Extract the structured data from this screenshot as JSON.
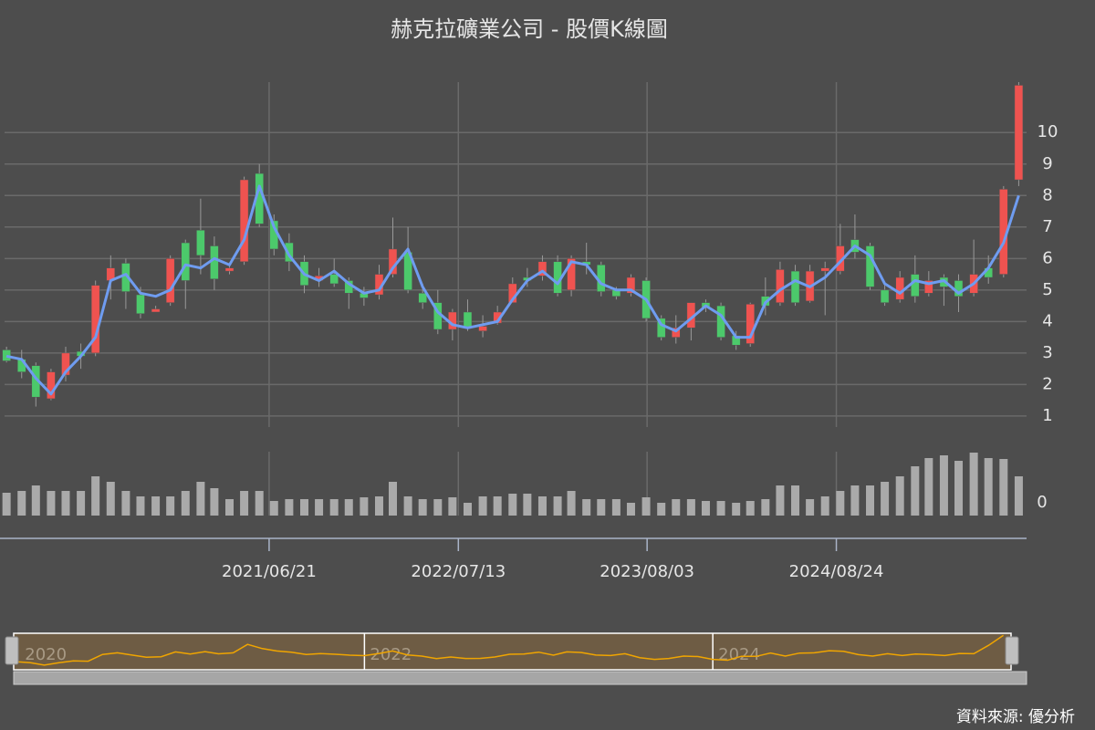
{
  "chart_data": {
    "type": "candlestick",
    "title": "赫克拉礦業公司 - 股價K線圖",
    "source": "資料來源: 優分析",
    "x": [
      "2020/01/01",
      "2020/02/01",
      "2020/03/01",
      "2020/04/01",
      "2020/05/01",
      "2020/06/01",
      "2020/07/01",
      "2020/08/01",
      "2020/09/01",
      "2020/10/01",
      "2020/11/01",
      "2020/12/01",
      "2021/01/01",
      "2021/02/01",
      "2021/03/01",
      "2021/04/01",
      "2021/05/01",
      "2021/06/01",
      "2021/07/01",
      "2021/08/01",
      "2021/09/01",
      "2021/10/01",
      "2021/11/01",
      "2021/12/01",
      "2022/01/01",
      "2022/02/01",
      "2022/03/01",
      "2022/04/01",
      "2022/05/01",
      "2022/06/01",
      "2022/07/01",
      "2022/08/01",
      "2022/09/01",
      "2022/10/01",
      "2022/11/01",
      "2022/12/01",
      "2023/01/01",
      "2023/02/01",
      "2023/03/01",
      "2023/04/01",
      "2023/05/01",
      "2023/06/01",
      "2023/07/01",
      "2023/08/01",
      "2023/09/01",
      "2023/10/01",
      "2023/11/01",
      "2023/12/01",
      "2024/01/01",
      "2024/02/01",
      "2024/03/01",
      "2024/04/01",
      "2024/05/01",
      "2024/06/01",
      "2024/07/01",
      "2024/08/01",
      "2024/09/01",
      "2024/10/01",
      "2024/11/01",
      "2024/12/01",
      "2025/01/01",
      "2025/02/01",
      "2025/03/01",
      "2025/04/01",
      "2025/05/01",
      "2025/06/01",
      "2025/07/01",
      "2025/08/01",
      "2025/09/01"
    ],
    "open": [
      3.1,
      2.8,
      2.6,
      1.55,
      2.3,
      3.05,
      3.0,
      5.3,
      5.85,
      4.85,
      4.3,
      4.6,
      6.5,
      6.9,
      6.4,
      5.6,
      5.9,
      8.7,
      7.2,
      6.5,
      5.9,
      5.3,
      5.5,
      5.3,
      4.9,
      4.85,
      5.5,
      6.2,
      4.9,
      4.6,
      3.75,
      4.3,
      3.7,
      3.95,
      4.6,
      5.4,
      5.45,
      5.9,
      5.0,
      5.9,
      5.8,
      5.0,
      4.9,
      5.3,
      4.1,
      3.5,
      3.8,
      4.6,
      4.5,
      3.55,
      3.3,
      4.8,
      4.6,
      5.6,
      4.65,
      5.6,
      5.6,
      6.6,
      6.4,
      5.0,
      4.7,
      5.5,
      4.9,
      5.4,
      5.3,
      4.9,
      5.7,
      5.5,
      8.5
    ],
    "high": [
      3.2,
      3.1,
      2.7,
      2.5,
      3.2,
      3.3,
      5.3,
      6.1,
      6.0,
      5.1,
      4.5,
      6.1,
      6.6,
      7.9,
      6.7,
      5.8,
      8.6,
      9.0,
      7.4,
      6.8,
      6.1,
      5.7,
      6.0,
      5.4,
      5.1,
      5.8,
      7.3,
      7.0,
      5.2,
      5.0,
      4.4,
      4.7,
      4.2,
      4.5,
      5.4,
      5.7,
      6.1,
      6.1,
      6.1,
      6.5,
      5.9,
      5.1,
      5.5,
      5.4,
      4.2,
      4.2,
      4.6,
      4.7,
      4.6,
      3.7,
      4.6,
      5.4,
      5.9,
      5.8,
      5.8,
      5.9,
      7.1,
      7.4,
      6.5,
      5.2,
      5.6,
      6.1,
      5.6,
      5.5,
      5.5,
      6.6,
      6.1,
      8.3,
      11.6
    ],
    "low": [
      2.7,
      2.2,
      1.3,
      1.5,
      2.1,
      2.5,
      2.9,
      4.7,
      4.4,
      4.1,
      4.3,
      4.5,
      4.4,
      5.5,
      5.0,
      5.5,
      5.8,
      7.0,
      6.1,
      5.6,
      4.9,
      5.1,
      5.1,
      4.4,
      4.5,
      4.7,
      5.4,
      4.9,
      4.4,
      3.6,
      3.4,
      3.7,
      3.5,
      3.9,
      4.6,
      5.1,
      5.3,
      4.8,
      4.8,
      5.5,
      4.8,
      4.7,
      4.8,
      4.0,
      3.4,
      3.3,
      3.4,
      4.3,
      3.4,
      3.1,
      3.2,
      4.2,
      4.5,
      4.5,
      4.6,
      4.2,
      5.5,
      6.0,
      5.0,
      4.5,
      4.6,
      4.6,
      4.8,
      4.5,
      4.3,
      4.8,
      5.2,
      5.4,
      8.3
    ],
    "close": [
      2.75,
      2.4,
      1.6,
      2.4,
      3.0,
      2.9,
      5.15,
      5.7,
      4.95,
      4.25,
      4.4,
      6.0,
      5.3,
      6.1,
      5.35,
      5.7,
      8.5,
      7.1,
      6.3,
      5.9,
      5.15,
      5.45,
      5.2,
      4.9,
      4.75,
      5.5,
      6.3,
      5.0,
      4.6,
      3.75,
      4.3,
      3.8,
      3.85,
      4.3,
      5.2,
      5.3,
      5.9,
      4.9,
      6.0,
      5.8,
      4.95,
      4.8,
      5.4,
      4.1,
      3.5,
      3.8,
      4.6,
      4.45,
      3.5,
      3.25,
      4.55,
      4.5,
      5.65,
      4.6,
      5.6,
      5.7,
      6.4,
      6.2,
      5.1,
      4.6,
      5.4,
      4.8,
      5.3,
      5.1,
      4.8,
      5.5,
      5.4,
      8.2,
      11.5
    ],
    "up_color": "#ef5350",
    "down_color": "#4cc96b",
    "ma": {
      "color": "#6f9cf0",
      "values": [
        2.9,
        2.8,
        2.2,
        1.7,
        2.4,
        2.9,
        3.5,
        5.3,
        5.5,
        4.9,
        4.8,
        5.0,
        5.8,
        5.7,
        6.0,
        5.8,
        6.6,
        8.3,
        7.0,
        6.1,
        5.5,
        5.3,
        5.6,
        5.2,
        4.9,
        5.0,
        5.7,
        6.3,
        5.1,
        4.3,
        3.9,
        3.8,
        3.9,
        4.0,
        4.7,
        5.3,
        5.6,
        5.2,
        5.9,
        5.8,
        5.2,
        5.0,
        5.0,
        4.7,
        3.9,
        3.7,
        4.1,
        4.5,
        4.2,
        3.5,
        3.5,
        4.6,
        5.0,
        5.3,
        5.1,
        5.4,
        5.9,
        6.4,
        6.1,
        5.2,
        4.9,
        5.3,
        5.2,
        5.3,
        4.9,
        5.2,
        5.7,
        6.5,
        8.0
      ]
    },
    "volume": {
      "color": "#aaaaaa",
      "values": [
        25,
        27,
        33,
        27,
        27,
        27,
        43,
        37,
        27,
        21,
        21,
        21,
        27,
        37,
        30,
        18,
        27,
        27,
        16,
        18,
        18,
        18,
        18,
        18,
        20,
        21,
        37,
        21,
        18,
        18,
        20,
        14,
        21,
        21,
        24,
        24,
        21,
        21,
        27,
        18,
        18,
        18,
        14,
        20,
        14,
        18,
        18,
        16,
        16,
        14,
        16,
        18,
        33,
        33,
        18,
        21,
        27,
        33,
        33,
        37,
        43,
        54,
        63,
        66,
        60,
        69,
        63,
        62,
        43
      ],
      "ylim": [
        0,
        70
      ],
      "yticks": [
        0
      ]
    },
    "xlim": [
      "2019/12/28",
      "2025/09/17"
    ],
    "xticks": [
      "2021/06/21",
      "2022/07/13",
      "2023/08/03",
      "2024/08/24"
    ],
    "ylim": [
      0.65,
      11.6
    ],
    "yticks": [
      1,
      2,
      3,
      4,
      5,
      6,
      7,
      8,
      9,
      10
    ],
    "grid": true,
    "slider_ticks": [
      {
        "value": "2020/01/09",
        "label": "2020"
      },
      {
        "value": "2022/01/01",
        "label": "2022"
      },
      {
        "value": "2024/01/01",
        "label": "2024"
      }
    ]
  }
}
